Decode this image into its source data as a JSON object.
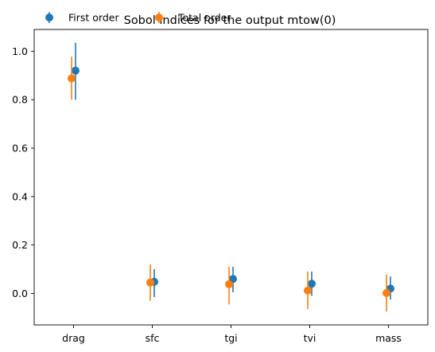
{
  "chart_data": {
    "type": "scatter",
    "title": "Sobol indices for the output mtow(0)",
    "xlabel": "",
    "ylabel": "",
    "categories": [
      "drag",
      "sfc",
      "tgi",
      "tvi",
      "mass"
    ],
    "ylim": [
      -0.13,
      1.09
    ],
    "yticks": [
      0.0,
      0.2,
      0.4,
      0.6,
      0.8,
      1.0
    ],
    "ytick_labels": [
      "0.0",
      "0.2",
      "0.4",
      "0.6",
      "0.8",
      "1.0"
    ],
    "grid": false,
    "legend": "top-left",
    "series": [
      {
        "name": "First order",
        "color": "#1f77b4",
        "offset": 0.025,
        "values": [
          0.92,
          0.048,
          0.06,
          0.04,
          0.02
        ],
        "err_low": [
          0.8,
          -0.015,
          0.005,
          -0.01,
          -0.025
        ],
        "err_high": [
          1.035,
          0.1,
          0.11,
          0.09,
          0.07
        ]
      },
      {
        "name": "Total order",
        "color": "#ff7f0e",
        "offset": -0.025,
        "values": [
          0.888,
          0.045,
          0.038,
          0.012,
          0.002
        ],
        "err_low": [
          0.8,
          -0.03,
          -0.045,
          -0.065,
          -0.075
        ],
        "err_high": [
          0.978,
          0.12,
          0.11,
          0.09,
          0.078
        ]
      }
    ]
  }
}
